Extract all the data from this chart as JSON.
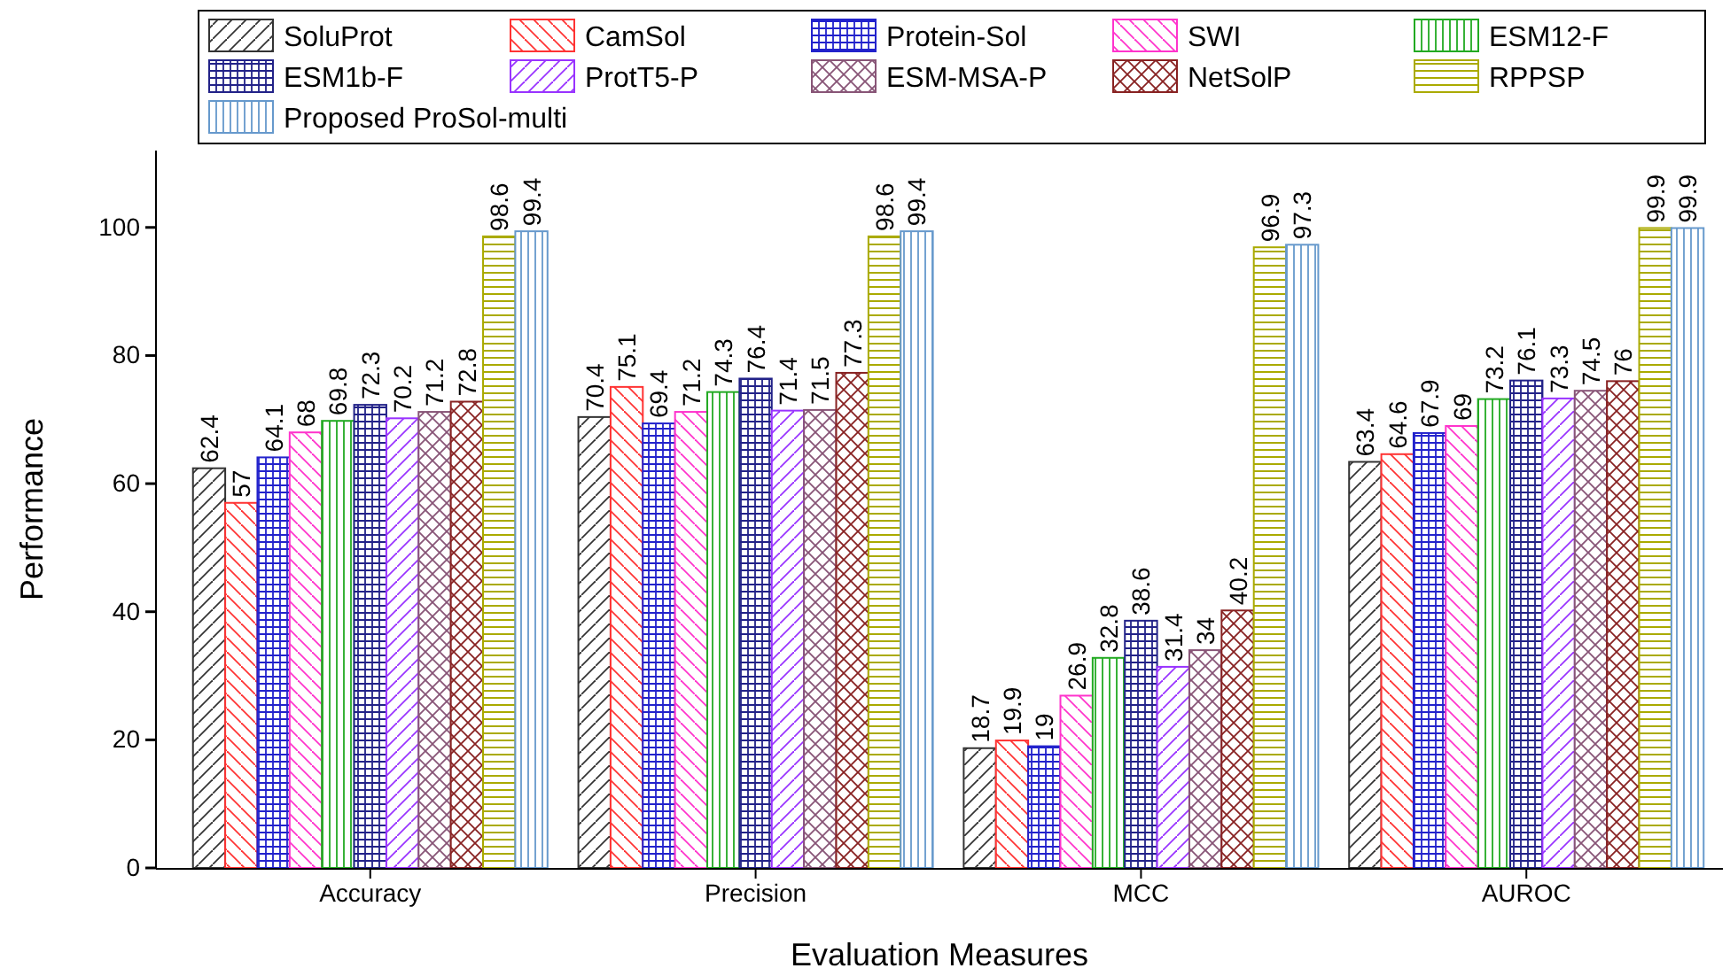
{
  "chart_data": {
    "type": "bar",
    "xlabel": "Evaluation Measures",
    "ylabel": "Performance",
    "categories": [
      "Accuracy",
      "Precision",
      "MCC",
      "AUROC"
    ],
    "series": [
      {
        "name": "SoluProt",
        "color": "#333333",
        "values": [
          62.4,
          70.4,
          18.7,
          63.4
        ]
      },
      {
        "name": "CamSol",
        "color": "#ff3333",
        "values": [
          57,
          75.1,
          19.9,
          64.6
        ]
      },
      {
        "name": "Protein-Sol",
        "color": "#2222cc",
        "values": [
          64.1,
          69.4,
          19,
          67.9
        ]
      },
      {
        "name": "SWI",
        "color": "#ff33cc",
        "values": [
          68,
          71.2,
          26.9,
          69
        ]
      },
      {
        "name": "ESM12-F",
        "color": "#22aa22",
        "values": [
          69.8,
          74.3,
          32.8,
          73.2
        ]
      },
      {
        "name": "ESM1b-F",
        "color": "#222288",
        "values": [
          72.3,
          76.4,
          38.6,
          76.1
        ]
      },
      {
        "name": "ProtT5-P",
        "color": "#9933ff",
        "values": [
          70.2,
          71.4,
          31.4,
          73.3
        ]
      },
      {
        "name": "ESM-MSA-P",
        "color": "#885577",
        "values": [
          71.2,
          71.5,
          34,
          74.5
        ]
      },
      {
        "name": "NetSolP",
        "color": "#882222",
        "values": [
          72.8,
          77.3,
          40.2,
          76
        ]
      },
      {
        "name": "RPPSP",
        "color": "#aaaa00",
        "values": [
          98.6,
          98.6,
          96.9,
          99.9
        ]
      },
      {
        "name": "Proposed ProSol-multi",
        "color": "#6699cc",
        "values": [
          99.4,
          99.4,
          97.3,
          99.9
        ]
      }
    ],
    "ylim": [
      0,
      112
    ],
    "yticks": [
      0,
      20,
      40,
      60,
      80,
      100
    ],
    "data_labels": true,
    "legend": "top",
    "grid": false
  }
}
